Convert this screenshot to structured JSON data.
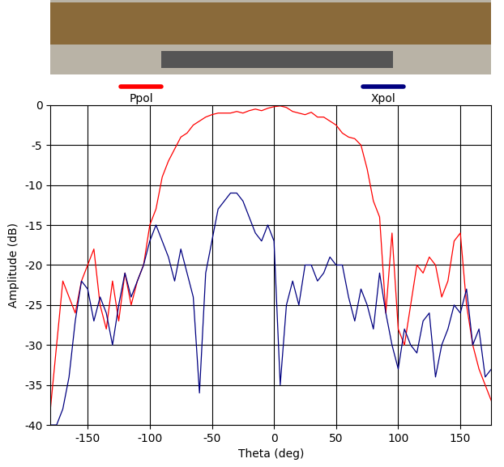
{
  "chart_data": {
    "type": "line",
    "x_label": "Theta (deg)",
    "y_label": "Amplitude (dB)",
    "x": [
      -180,
      -175,
      -170,
      -165,
      -160,
      -155,
      -150,
      -145,
      -140,
      -135,
      -130,
      -125,
      -120,
      -115,
      -110,
      -105,
      -100,
      -95,
      -90,
      -85,
      -80,
      -75,
      -70,
      -65,
      -60,
      -55,
      -50,
      -45,
      -40,
      -35,
      -30,
      -25,
      -20,
      -15,
      -10,
      -5,
      0,
      5,
      10,
      15,
      20,
      25,
      30,
      35,
      40,
      45,
      50,
      55,
      60,
      65,
      70,
      75,
      80,
      85,
      90,
      95,
      100,
      105,
      110,
      115,
      120,
      125,
      130,
      135,
      140,
      145,
      150,
      155,
      160,
      165,
      170,
      175
    ],
    "series": [
      {
        "name": "Ppol",
        "color": "#ff0000",
        "values": [
          -38,
          -30,
          -22,
          -24,
          -26,
          -22,
          -20,
          -18,
          -25,
          -28,
          -22,
          -27,
          -21,
          -25,
          -22,
          -20,
          -15,
          -13,
          -9,
          -7,
          -5.5,
          -4,
          -3.5,
          -2.5,
          -2,
          -1.5,
          -1.2,
          -1,
          -1,
          -1,
          -0.8,
          -1,
          -0.7,
          -0.5,
          -0.7,
          -0.4,
          -0.2,
          -0.1,
          -0.3,
          -0.8,
          -1,
          -1.2,
          -0.9,
          -1.5,
          -1.5,
          -2,
          -2.5,
          -3.5,
          -4,
          -4.2,
          -5,
          -8,
          -12,
          -14,
          -26,
          -16,
          -28,
          -30,
          -25,
          -20,
          -21,
          -19,
          -20,
          -24,
          -22,
          -17,
          -16,
          -25,
          -30,
          -33,
          -35,
          -37
        ]
      },
      {
        "name": "Xpol",
        "color": "#000080",
        "values": [
          -40,
          -40,
          -38,
          -34,
          -27,
          -22,
          -23,
          -27,
          -24,
          -26,
          -30,
          -25,
          -21,
          -24,
          -22,
          -20,
          -17,
          -15,
          -17,
          -19,
          -22,
          -18,
          -21,
          -24,
          -36,
          -21,
          -17,
          -13,
          -12,
          -11,
          -11,
          -12,
          -14,
          -16,
          -17,
          -15,
          -17,
          -35,
          -25,
          -22,
          -25,
          -20,
          -20,
          -22,
          -21,
          -19,
          -20,
          -20,
          -24,
          -27,
          -23,
          -25,
          -28,
          -21,
          -26,
          -30,
          -33,
          -28,
          -30,
          -31,
          -27,
          -26,
          -34,
          -30,
          -28,
          -25,
          -26,
          -23,
          -30,
          -28,
          -34,
          -33
        ]
      }
    ],
    "xlim": [
      -180,
      175
    ],
    "xticks": [
      -150,
      -100,
      -50,
      0,
      50,
      100,
      150
    ],
    "ylim": [
      -40,
      0
    ],
    "yticks": [
      -40,
      -35,
      -30,
      -25,
      -20,
      -15,
      -10,
      -5,
      0
    ],
    "grid": true,
    "legend": "top"
  }
}
